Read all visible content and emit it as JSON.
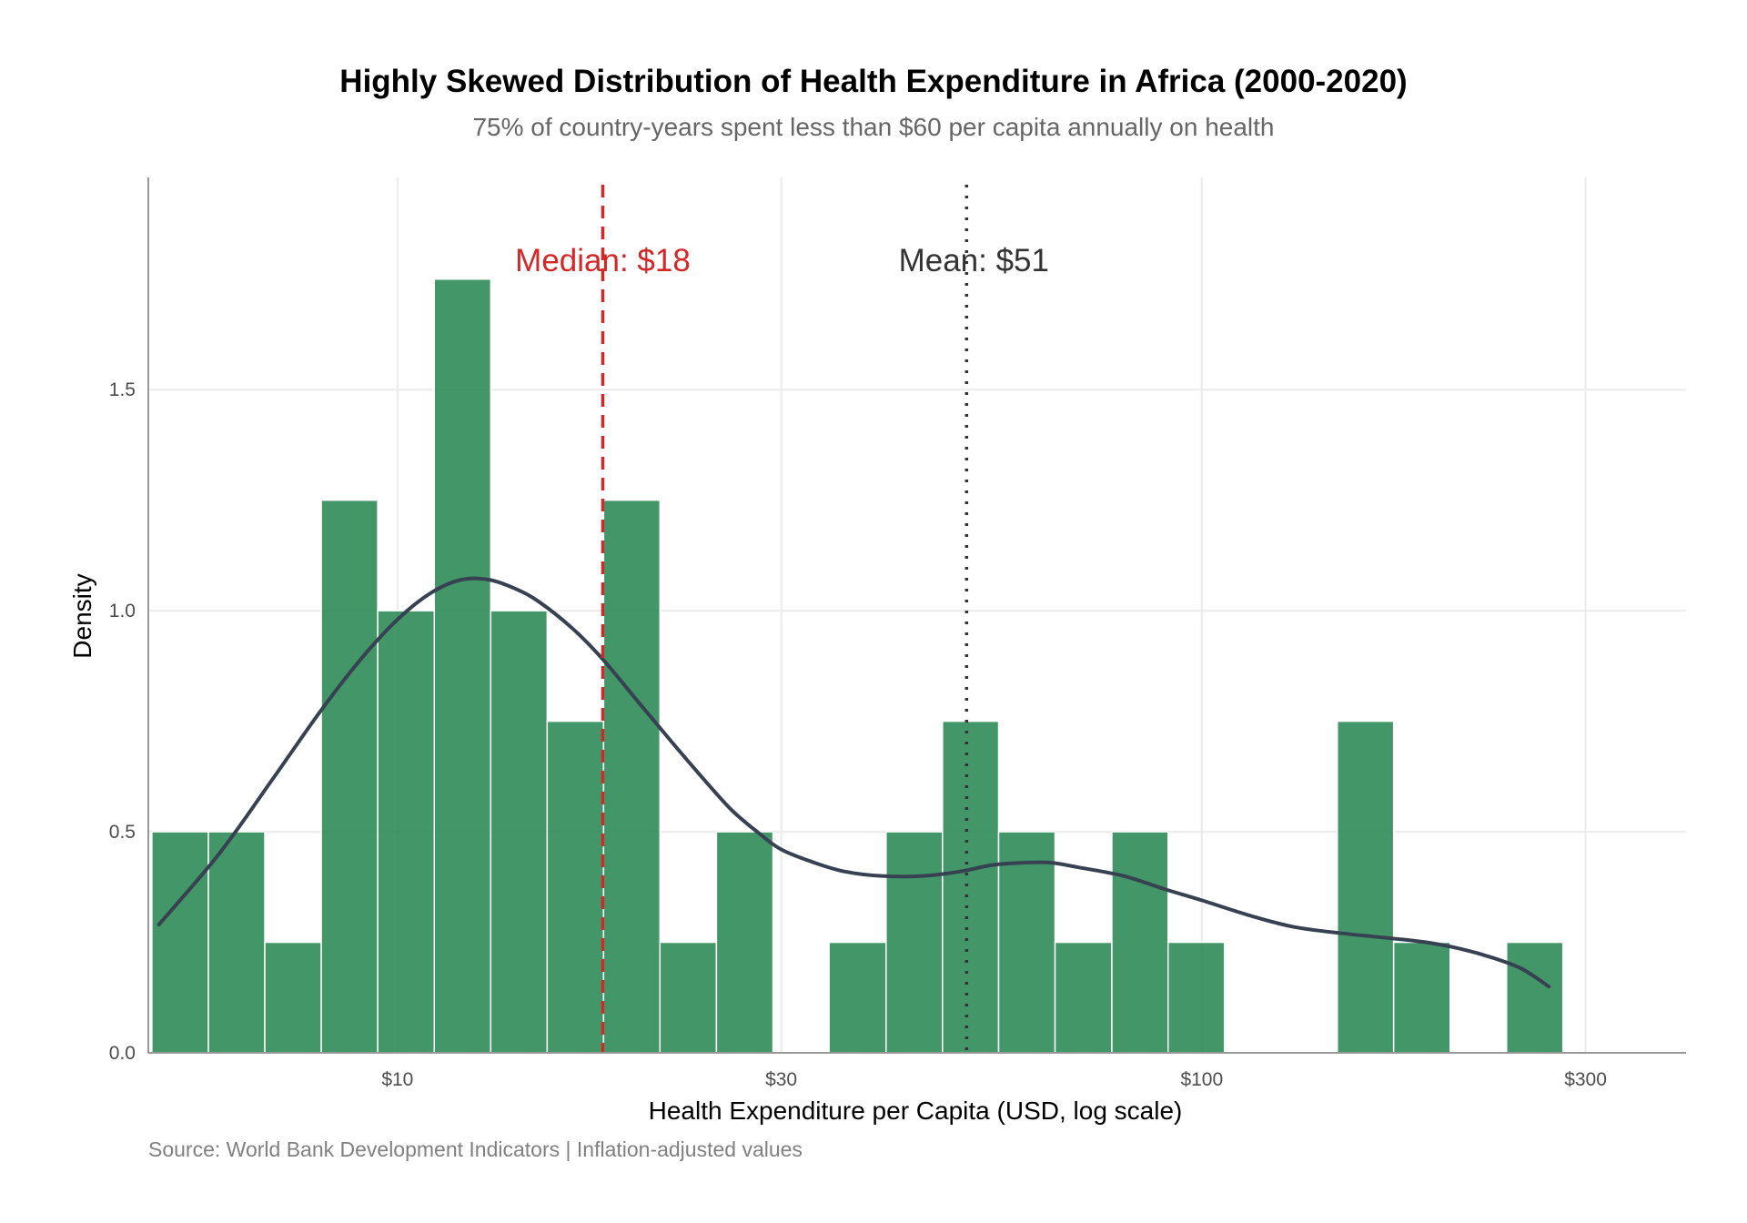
{
  "chart_data": {
    "type": "bar",
    "title": "Highly Skewed Distribution of Health Expenditure in Africa (2000-2020)",
    "subtitle": "75% of country-years spent less than $60 per capita annually on health",
    "caption": "Source: World Bank Development Indicators | Inflation-adjusted values",
    "xlabel": "Health Expenditure per Capita (USD, log scale)",
    "ylabel": "Density",
    "x_scale": "log10",
    "xlim": [
      4.9,
      400
    ],
    "ylim": [
      0,
      1.98
    ],
    "x_ticks": [
      10,
      30,
      100,
      300
    ],
    "x_tick_labels": [
      "$10",
      "$30",
      "$100",
      "$300"
    ],
    "y_ticks": [
      0,
      0.5,
      1,
      1.5
    ],
    "y_tick_labels": [
      "0.0",
      "0.5",
      "1.0",
      "1.5"
    ],
    "grid": true,
    "bin_width_log10": 0.0696,
    "bins": [
      {
        "x_start": 4.95,
        "x_end": 5.82,
        "density": 0.5
      },
      {
        "x_start": 5.82,
        "x_end": 6.84,
        "density": 0.5
      },
      {
        "x_start": 6.84,
        "x_end": 8.04,
        "density": 0.25
      },
      {
        "x_start": 8.04,
        "x_end": 9.45,
        "density": 1.25
      },
      {
        "x_start": 9.45,
        "x_end": 11.11,
        "density": 1.0
      },
      {
        "x_start": 11.11,
        "x_end": 13.06,
        "density": 1.75
      },
      {
        "x_start": 13.06,
        "x_end": 15.35,
        "density": 1.0
      },
      {
        "x_start": 15.35,
        "x_end": 18.04,
        "density": 0.75
      },
      {
        "x_start": 18.04,
        "x_end": 21.2,
        "density": 1.25
      },
      {
        "x_start": 21.2,
        "x_end": 24.92,
        "density": 0.25
      },
      {
        "x_start": 24.92,
        "x_end": 29.3,
        "density": 0.5
      },
      {
        "x_start": 29.3,
        "x_end": 34.4,
        "density": 0
      },
      {
        "x_start": 34.4,
        "x_end": 40.5,
        "density": 0.25
      },
      {
        "x_start": 40.5,
        "x_end": 47.6,
        "density": 0.5
      },
      {
        "x_start": 47.6,
        "x_end": 55.9,
        "density": 0.75
      },
      {
        "x_start": 55.9,
        "x_end": 65.7,
        "density": 0.5
      },
      {
        "x_start": 65.7,
        "x_end": 77.3,
        "density": 0.25
      },
      {
        "x_start": 77.3,
        "x_end": 90.8,
        "density": 0.5
      },
      {
        "x_start": 90.8,
        "x_end": 106.7,
        "density": 0.25
      },
      {
        "x_start": 106.7,
        "x_end": 125.4,
        "density": 0
      },
      {
        "x_start": 125.4,
        "x_end": 147.4,
        "density": 0
      },
      {
        "x_start": 147.4,
        "x_end": 173.2,
        "density": 0.75
      },
      {
        "x_start": 173.2,
        "x_end": 203.6,
        "density": 0.25
      },
      {
        "x_start": 203.6,
        "x_end": 239.3,
        "density": 0
      },
      {
        "x_start": 239.3,
        "x_end": 281.2,
        "density": 0.25
      }
    ],
    "density_curve": {
      "x": [
        5.05,
        6.0,
        7.0,
        8.0,
        9.0,
        10.0,
        11.0,
        12.0,
        13.0,
        14.0,
        15.0,
        16.5,
        18.0,
        20.0,
        22.0,
        24.0,
        26.0,
        28.0,
        30.0,
        33.0,
        36.0,
        40.0,
        45.0,
        50.0,
        55.0,
        60.0,
        65.0,
        70.0,
        80.0,
        90.0,
        100.0,
        115.0,
        130.0,
        150.0,
        170.0,
        190.0,
        210.0,
        230.0,
        250.0,
        270.0
      ],
      "y": [
        0.29,
        0.45,
        0.62,
        0.77,
        0.89,
        0.98,
        1.04,
        1.07,
        1.07,
        1.05,
        1.02,
        0.96,
        0.89,
        0.79,
        0.7,
        0.62,
        0.55,
        0.5,
        0.46,
        0.43,
        0.41,
        0.4,
        0.4,
        0.41,
        0.425,
        0.43,
        0.43,
        0.42,
        0.4,
        0.37,
        0.345,
        0.31,
        0.285,
        0.27,
        0.26,
        0.25,
        0.235,
        0.215,
        0.19,
        0.15
      ]
    },
    "median": {
      "value": 18,
      "label": "Median: $18",
      "color": "#d62728"
    },
    "mean": {
      "value": 51,
      "label": "Mean: $51",
      "color": "#333333"
    },
    "colors": {
      "bar_fill": "#2e8b57",
      "curve": "#374151",
      "grid": "#ebebeb",
      "axis": "#999999"
    }
  }
}
